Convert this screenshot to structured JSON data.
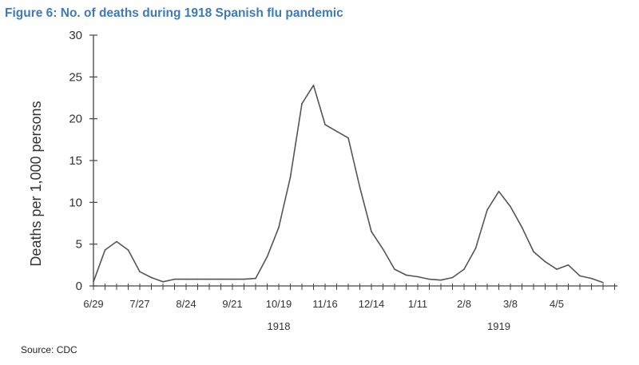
{
  "title": "Figure 6: No. of deaths during 1918 Spanish flu pandemic",
  "source": "Source: CDC",
  "colors": {
    "title": "#3f7ab6",
    "line": "#555555",
    "axis": "#444444"
  },
  "chart_data": {
    "type": "line",
    "title": "Figure 6: No. of deaths during 1918 Spanish flu pandemic",
    "xlabel": "",
    "ylabel": "Deaths per 1,000 persons",
    "ylim": [
      0,
      30
    ],
    "yticks": [
      0,
      5,
      10,
      15,
      20,
      25,
      30
    ],
    "xlim": [
      0,
      47
    ],
    "xtick_labels": [
      {
        "x": 0,
        "label": "6/29"
      },
      {
        "x": 4,
        "label": "7/27"
      },
      {
        "x": 8,
        "label": "8/24"
      },
      {
        "x": 12,
        "label": "9/21"
      },
      {
        "x": 16,
        "label": "10/19"
      },
      {
        "x": 20,
        "label": "11/16"
      },
      {
        "x": 24,
        "label": "12/14"
      },
      {
        "x": 28,
        "label": "1/11"
      },
      {
        "x": 32,
        "label": "2/8"
      },
      {
        "x": 36,
        "label": "3/8"
      },
      {
        "x": 40,
        "label": "4/5"
      }
    ],
    "year_labels": [
      {
        "x": 16,
        "label": "1918"
      },
      {
        "x": 35,
        "label": "1919"
      }
    ],
    "grid": false,
    "series": [
      {
        "x": [
          0,
          1,
          2,
          3,
          4,
          5,
          6,
          7,
          8,
          9,
          10,
          11,
          12,
          13,
          14,
          15,
          16,
          17,
          18,
          19,
          20,
          21,
          22,
          23,
          24,
          25,
          26,
          27,
          28,
          29,
          30,
          31,
          32,
          33,
          34,
          35,
          36,
          37,
          38,
          39,
          40,
          41,
          42,
          43,
          44
        ],
        "values": [
          0.5,
          4.3,
          5.3,
          4.3,
          1.7,
          1.0,
          0.5,
          0.8,
          0.8,
          0.8,
          0.8,
          0.8,
          0.8,
          0.8,
          0.9,
          3.5,
          7.0,
          13.0,
          21.8,
          24.0,
          19.3,
          18.5,
          17.7,
          11.8,
          6.5,
          4.4,
          2.0,
          1.3,
          1.1,
          0.8,
          0.7,
          1.0,
          2.0,
          4.5,
          9.1,
          11.3,
          9.5,
          7.0,
          4.1,
          2.9,
          2.0,
          2.5,
          1.2,
          0.9,
          0.4
        ]
      }
    ]
  }
}
